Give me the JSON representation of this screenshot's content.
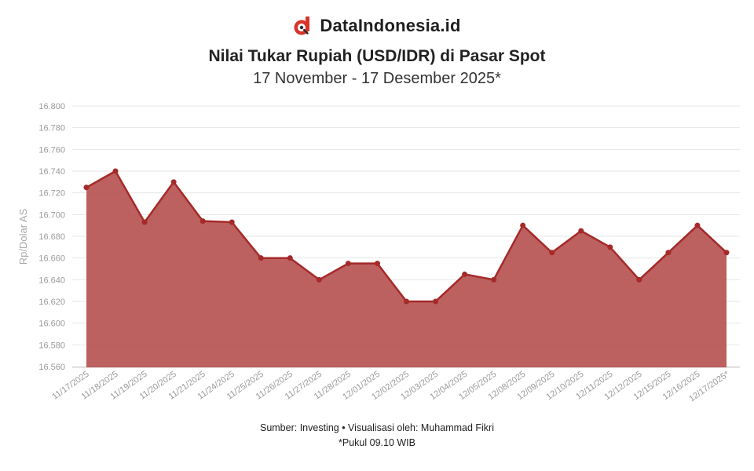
{
  "brand": {
    "name": "DataIndonesia.id",
    "logo_icon": "dataindonesia-logo-icon",
    "logo_color": "#d9342b"
  },
  "chart_data": {
    "type": "area",
    "title": "Nilai Tukar Rupiah (USD/IDR) di Pasar Spot",
    "subtitle": "17 November - 17 Desember 2025*",
    "xlabel": "",
    "ylabel": "Rp/Dolar AS",
    "categories": [
      "11/17/2025",
      "11/18/2025",
      "11/19/2025",
      "11/20/2025",
      "11/21/2025",
      "11/24/2025",
      "11/25/2025",
      "11/26/2025",
      "11/27/2025",
      "11/28/2025",
      "12/01/2025",
      "12/02/2025",
      "12/03/2025",
      "12/04/2025",
      "12/05/2025",
      "12/08/2025",
      "12/09/2025",
      "12/10/2025",
      "12/11/2025",
      "12/12/2025",
      "12/15/2025",
      "12/16/2025",
      "12/17/2025*"
    ],
    "values": [
      16725,
      16740,
      16693,
      16730,
      16694,
      16693,
      16660,
      16660,
      16640,
      16655,
      16655,
      16620,
      16620,
      16645,
      16640,
      16690,
      16665,
      16685,
      16670,
      16640,
      16665,
      16690,
      16665
    ],
    "y_ticks": [
      "16.560",
      "16.580",
      "16.600",
      "16.620",
      "16.640",
      "16.660",
      "16.680",
      "16.700",
      "16.720",
      "16.740",
      "16.760",
      "16.780",
      "16.800"
    ],
    "ylim": [
      16550,
      16800
    ],
    "grid": true,
    "legend": "none",
    "line_color": "#a52a2a",
    "fill_color": "#b5504e"
  },
  "footer": {
    "source": "Sumber: Investing • Visualisasi oleh: Muhammad Fikri",
    "note": "*Pukul 09.10 WIB"
  }
}
